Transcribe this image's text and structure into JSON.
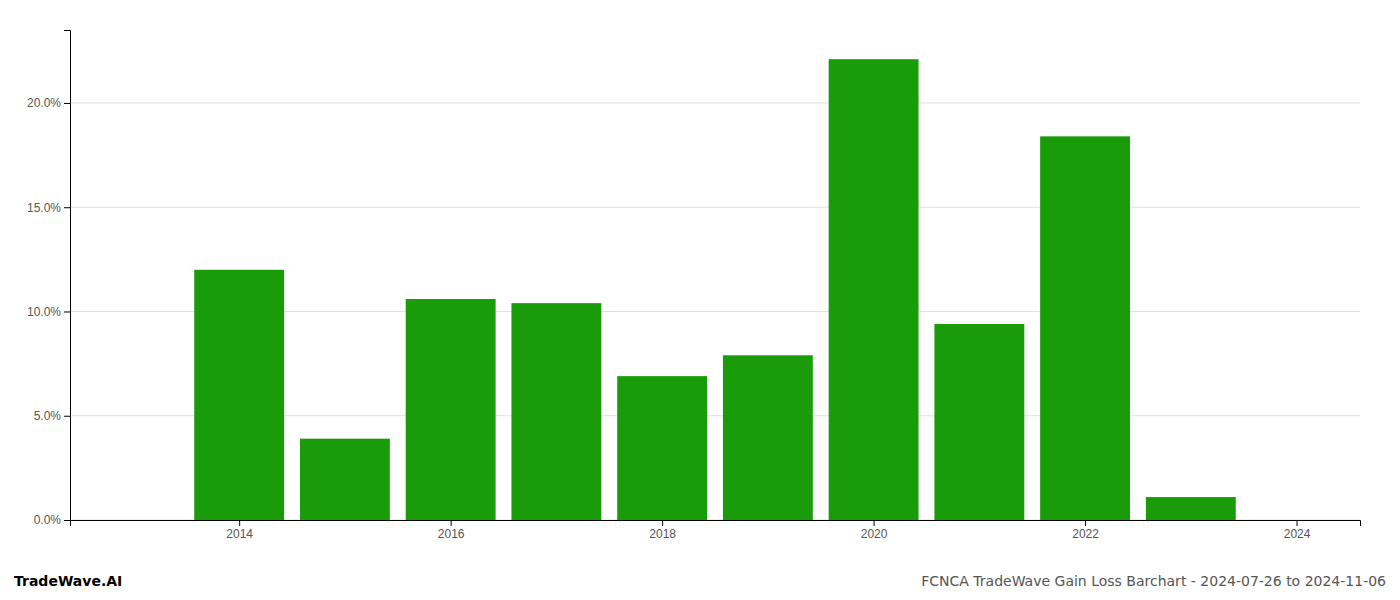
{
  "chart_data": {
    "type": "bar",
    "title": "FCNCA TradeWave Gain Loss Barchart - 2024-07-26 to 2024-11-06",
    "annotations": [
      "TradeWave.AI"
    ],
    "x": [
      2013,
      2014,
      2015,
      2016,
      2017,
      2018,
      2019,
      2020,
      2021,
      2022,
      2023,
      2024
    ],
    "values": [
      0.0,
      12.0,
      3.9,
      10.6,
      10.4,
      6.9,
      7.9,
      22.1,
      9.4,
      18.4,
      1.1,
      0.0
    ],
    "color": "#1a9c0a",
    "xlim": [
      2012.4,
      2024.6
    ],
    "xticks": [
      2014,
      2016,
      2018,
      2020,
      2022,
      2024
    ],
    "ylim": [
      0,
      23.5
    ],
    "yticks": [
      {
        "value": 0.0,
        "label": "0.0%"
      },
      {
        "value": 5.0,
        "label": "5.0%"
      },
      {
        "value": 10.0,
        "label": "10.0%"
      },
      {
        "value": 15.0,
        "label": "15.0%"
      },
      {
        "value": 20.0,
        "label": "20.0%"
      }
    ],
    "grid": true
  }
}
